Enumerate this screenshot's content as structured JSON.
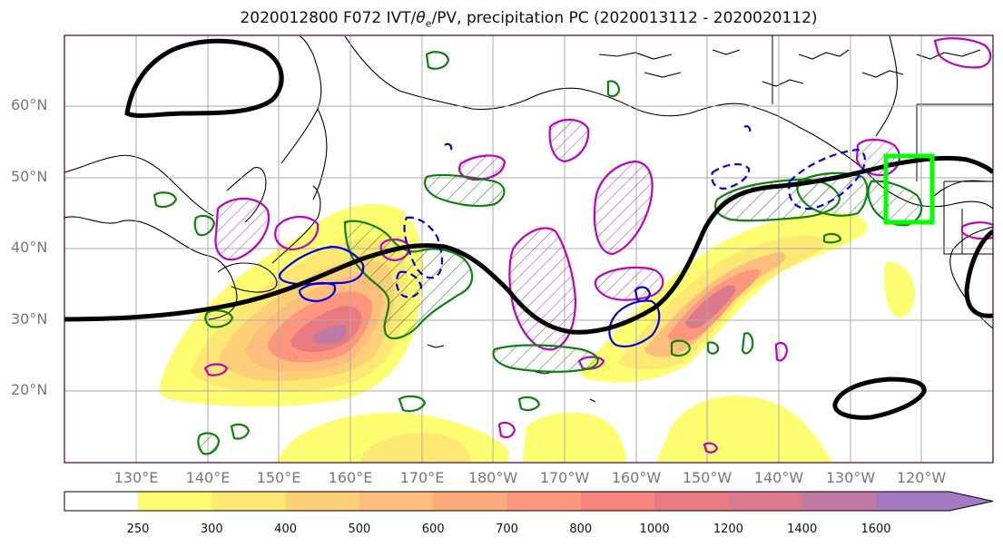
{
  "title_prefix": "2020012800 F072 IVT/",
  "title_theta": "θ",
  "title_sub": "e",
  "title_suffix": "/PV, precipitation PC (2020013112 - 2020020112)",
  "lat_labels": [
    "60°N",
    "50°N",
    "40°N",
    "30°N",
    "20°N"
  ],
  "lon_labels": [
    "130°E",
    "140°E",
    "150°E",
    "160°E",
    "170°E",
    "180°W",
    "170°W",
    "160°W",
    "150°W",
    "140°W",
    "130°W",
    "120°W"
  ],
  "colorbar": {
    "ticks": [
      "250",
      "300",
      "400",
      "500",
      "600",
      "700",
      "800",
      "1000",
      "1200",
      "1400",
      "1600"
    ],
    "colors": [
      "#fefe70",
      "#fde873",
      "#fdd077",
      "#fdbd7c",
      "#fdab7c",
      "#fd967c",
      "#f7847c",
      "#e97a80",
      "#db7a8c",
      "#c17aa6",
      "#a67ac2"
    ]
  },
  "highlight_box_color": "#00ff00"
}
